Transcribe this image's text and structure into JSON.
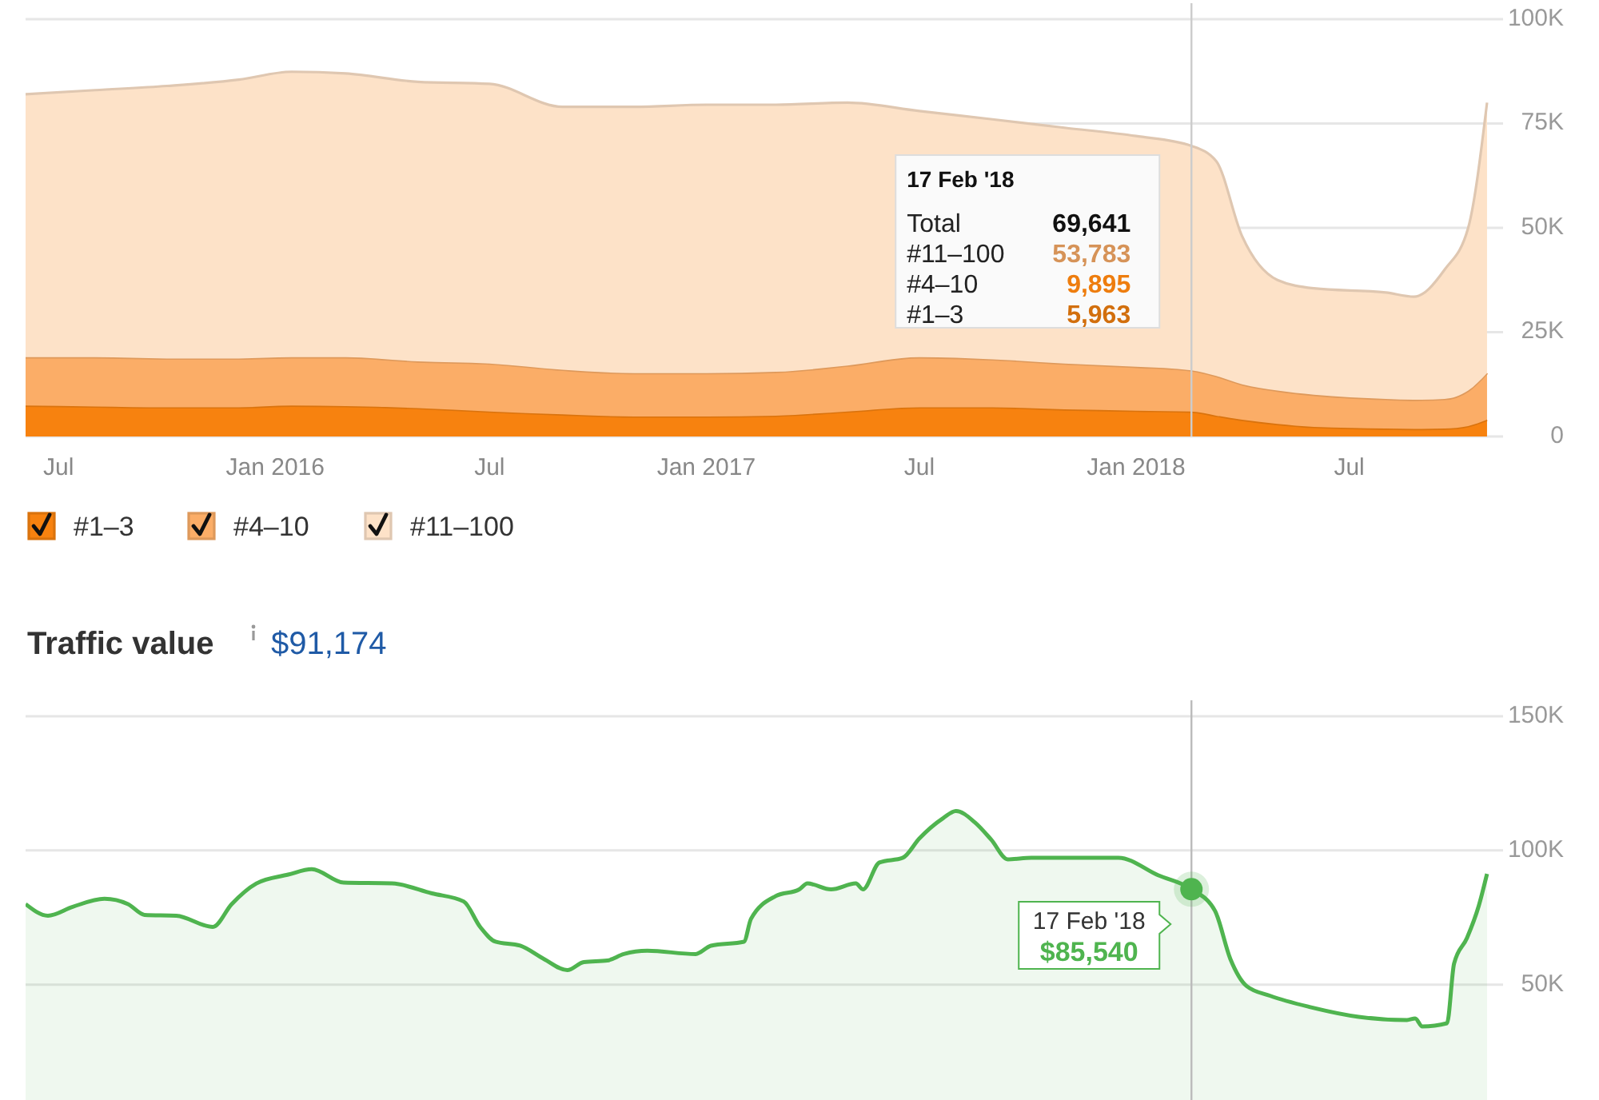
{
  "chart_data": [
    {
      "type": "area",
      "stacked": true,
      "x": [
        "2015-06-03",
        "2015-08-01",
        "2015-10-01",
        "2015-12-01",
        "2016-01-15",
        "2016-03-01",
        "2016-05-01",
        "2016-07-01",
        "2016-09-01",
        "2016-11-01",
        "2017-01-01",
        "2017-03-01",
        "2017-05-01",
        "2017-07-01",
        "2017-09-01",
        "2017-11-01",
        "2018-01-01",
        "2018-02-17",
        "2018-03-10",
        "2018-04-01",
        "2018-05-01",
        "2018-06-01",
        "2018-08-01",
        "2018-08-25",
        "2018-09-20",
        "2018-10-10",
        "2018-10-26"
      ],
      "series": [
        {
          "name": "#1–3",
          "color": "#f7820f",
          "values": [
            7400,
            7200,
            7000,
            7000,
            7400,
            7300,
            6800,
            6000,
            5300,
            4800,
            4800,
            5000,
            6000,
            7000,
            7000,
            6500,
            6200,
            5963,
            5000,
            4000,
            3000,
            2300,
            1900,
            1800,
            1900,
            2500,
            4000
          ]
        },
        {
          "name": "#4–10",
          "color": "#fbad67",
          "values": [
            11600,
            11800,
            11700,
            11700,
            11600,
            11700,
            11200,
            11500,
            10700,
            10400,
            10400,
            10500,
            11000,
            12000,
            11500,
            11000,
            10500,
            9895,
            9500,
            8500,
            8000,
            7700,
            7100,
            7000,
            7100,
            8500,
            11200
          ]
        },
        {
          "name": "#11–100",
          "color": "#fde2c8",
          "values": [
            63000,
            64000,
            65300,
            66800,
            68400,
            68000,
            67000,
            67000,
            63000,
            63800,
            64300,
            64000,
            63000,
            59000,
            57500,
            56500,
            55300,
            53783,
            51500,
            35500,
            26500,
            25500,
            25500,
            24700,
            31000,
            39000,
            64800
          ]
        }
      ],
      "xlim": [
        "2015-06-03",
        "2019-01-25"
      ],
      "xticks": [
        {
          "value": "2015-07-01",
          "label": "Jul"
        },
        {
          "value": "2016-01-01",
          "label": "Jan 2016"
        },
        {
          "value": "2016-07-01",
          "label": "Jul"
        },
        {
          "value": "2017-01-01",
          "label": "Jan 2017"
        },
        {
          "value": "2017-07-01",
          "label": "Jul"
        },
        {
          "value": "2018-01-01",
          "label": "Jan 2018"
        },
        {
          "value": "2018-07-01",
          "label": "Jul"
        }
      ],
      "ylim": [
        0,
        100000
      ],
      "yticks": [
        0,
        {
          "value": 25000,
          "label": "25K"
        },
        {
          "value": 50000,
          "label": "50K"
        },
        {
          "value": 75000,
          "label": "75K"
        },
        {
          "value": 100000,
          "label": "100K"
        }
      ],
      "grid": "y",
      "legend": "bottom left",
      "ref_lines": [
        {
          "axis": "x",
          "value": "2018-02-17",
          "color": "#cccccc"
        }
      ],
      "annotations": [
        "17 Feb '18",
        "Total",
        "69,641",
        "#11–100",
        "53,783",
        "#4–10",
        "9,895",
        "#1–3",
        "5,963"
      ]
    },
    {
      "type": "area",
      "title": "Traffic value",
      "subtitle": "$91,174",
      "x": [
        "2015-06-03",
        "2015-06-22",
        "2015-07-13",
        "2015-08-09",
        "2015-08-29",
        "2015-09-12",
        "2015-10-09",
        "2015-11-09",
        "2015-11-25",
        "2015-12-16",
        "2016-01-12",
        "2016-02-01",
        "2016-02-28",
        "2016-04-09",
        "2016-05-13",
        "2016-06-09",
        "2016-06-23",
        "2016-07-06",
        "2016-07-27",
        "2016-08-16",
        "2016-09-05",
        "2016-09-19",
        "2016-10-09",
        "2016-10-23",
        "2016-11-12",
        "2016-12-23",
        "2017-01-05",
        "2017-02-02",
        "2017-02-08",
        "2017-03-01",
        "2017-03-21",
        "2017-03-28",
        "2017-04-17",
        "2017-05-08",
        "2017-05-14",
        "2017-05-28",
        "2017-06-17",
        "2017-07-01",
        "2017-07-21",
        "2017-08-01",
        "2017-08-17",
        "2017-08-31",
        "2017-09-14",
        "2017-10-04",
        "2017-11-07",
        "2017-12-17",
        "2018-01-20",
        "2018-02-17",
        "2018-03-09",
        "2018-03-22",
        "2018-04-05",
        "2018-04-25",
        "2018-05-29",
        "2018-07-09",
        "2018-08-19",
        "2018-08-26",
        "2018-09-01",
        "2018-09-22",
        "2018-09-28",
        "2018-10-09",
        "2018-10-19",
        "2018-10-26"
      ],
      "series": [
        {
          "color": "#4fb44f",
          "values": [
            80000,
            75700,
            79000,
            82000,
            80000,
            76000,
            75700,
            71500,
            80000,
            87700,
            91000,
            93000,
            88000,
            87700,
            84000,
            81000,
            71500,
            66000,
            64500,
            59600,
            55400,
            58400,
            59000,
            61400,
            62600,
            61400,
            64500,
            66000,
            74500,
            83000,
            85500,
            87700,
            85500,
            87700,
            85500,
            95500,
            97300,
            104500,
            112000,
            114700,
            110500,
            104000,
            96700,
            97300,
            97300,
            97300,
            90700,
            85540,
            77500,
            59600,
            49400,
            45800,
            41600,
            38000,
            36800,
            37400,
            34400,
            35600,
            57800,
            67400,
            79400,
            91300
          ]
        }
      ],
      "xlim": [
        "2015-06-03",
        "2019-01-25"
      ],
      "ylim": [
        7000,
        150000
      ],
      "yticks": [
        {
          "value": 50000,
          "label": "50K"
        },
        {
          "value": 100000,
          "label": "100K"
        },
        {
          "value": 150000,
          "label": "150K"
        }
      ],
      "grid": "y",
      "tick_labels": "y",
      "ref_lines": [
        {
          "axis": "x",
          "value": "2018-02-17",
          "color": "#bbbbbb"
        }
      ],
      "annotations": [
        "17 Feb '18",
        "$85,540"
      ]
    }
  ]
}
